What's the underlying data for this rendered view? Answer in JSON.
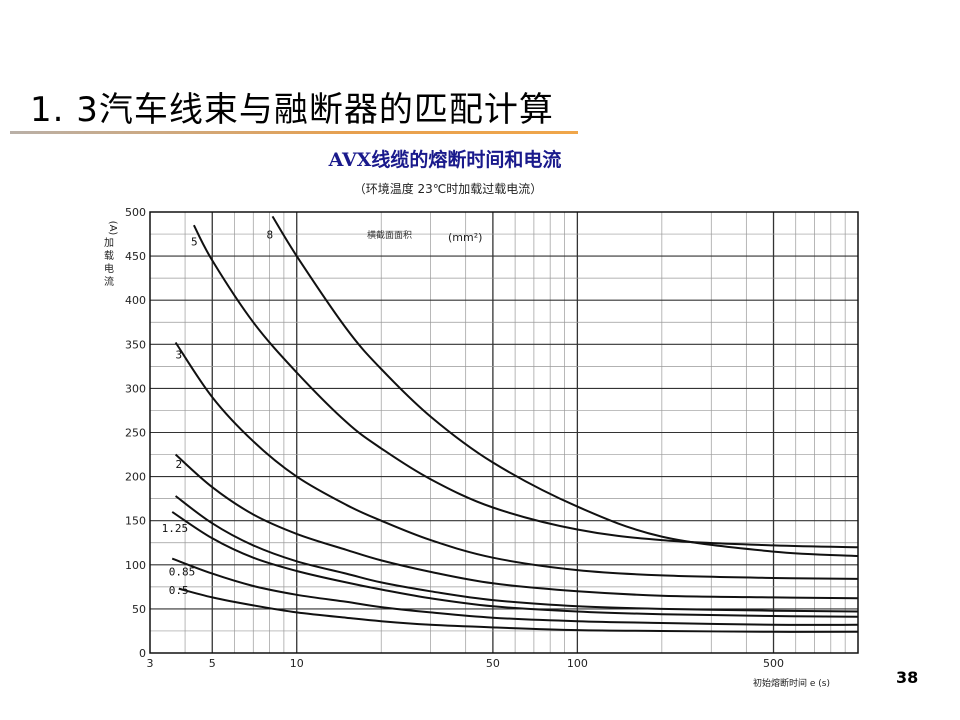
{
  "slide": {
    "title": "1. 3汽车线束与融断器的匹配计算",
    "page_number": "38"
  },
  "chart_data": {
    "type": "line",
    "title": "AVX线缆的熔断时间和电流",
    "subtitle": "（环境温度 23℃时加载过载电流）",
    "xlabel": "初始熔断时间  e (s)",
    "ylabel": "加载电流 (A)",
    "ylabel_unit": "(A)",
    "ylabel_text": "加载电流",
    "legend_title": "横截面面积",
    "legend_unit": "(mm²)",
    "x_scale": "log",
    "xlim": [
      3,
      1000
    ],
    "ylim": [
      0,
      500
    ],
    "x_ticks": [
      {
        "value": 3,
        "label": "3"
      },
      {
        "value": 5,
        "label": "5"
      },
      {
        "value": 10,
        "label": "10"
      },
      {
        "value": 50,
        "label": "50"
      },
      {
        "value": 100,
        "label": "100"
      },
      {
        "value": 500,
        "label": "500"
      }
    ],
    "y_ticks": [
      {
        "value": 0,
        "label": "0"
      },
      {
        "value": 50,
        "label": "50"
      },
      {
        "value": 100,
        "label": "100"
      },
      {
        "value": 150,
        "label": "150"
      },
      {
        "value": 200,
        "label": "200"
      },
      {
        "value": 250,
        "label": "250"
      },
      {
        "value": 300,
        "label": "300"
      },
      {
        "value": 350,
        "label": "350"
      },
      {
        "value": 400,
        "label": "400"
      },
      {
        "value": 450,
        "label": "450"
      },
      {
        "value": 500,
        "label": "500"
      }
    ],
    "grid": true,
    "series": [
      {
        "name": "0.5",
        "label_pos": [
          3.5,
          67
        ],
        "x": [
          3.8,
          5,
          7,
          10,
          15,
          20,
          30,
          50,
          100,
          200,
          500,
          1000
        ],
        "y": [
          73,
          63,
          54,
          46,
          40,
          36,
          32,
          29,
          26,
          25,
          24,
          24
        ]
      },
      {
        "name": "0.85",
        "label_pos": [
          3.5,
          88
        ],
        "x": [
          3.6,
          5,
          7,
          10,
          15,
          20,
          30,
          50,
          100,
          200,
          500,
          1000
        ],
        "y": [
          107,
          90,
          76,
          66,
          58,
          52,
          46,
          40,
          36,
          34,
          32,
          32
        ]
      },
      {
        "name": "1.25",
        "label_pos": [
          3.3,
          137
        ],
        "x": [
          3.6,
          5,
          7,
          10,
          15,
          20,
          30,
          50,
          100,
          200,
          500,
          1000
        ],
        "y": [
          160,
          130,
          108,
          93,
          80,
          72,
          62,
          53,
          47,
          44,
          42,
          41
        ]
      },
      {
        "name": "",
        "label_pos": [
          3.5,
          165
        ],
        "x": [
          3.7,
          5,
          7,
          10,
          15,
          20,
          30,
          50,
          100,
          200,
          500,
          1000
        ],
        "y": [
          178,
          147,
          122,
          104,
          90,
          80,
          70,
          60,
          53,
          50,
          48,
          47
        ]
      },
      {
        "name": "2",
        "label_pos": [
          3.7,
          210
        ],
        "x": [
          3.7,
          5,
          7,
          10,
          15,
          20,
          30,
          50,
          100,
          200,
          500,
          1000
        ],
        "y": [
          225,
          188,
          157,
          135,
          117,
          105,
          92,
          79,
          70,
          65,
          63,
          62
        ]
      },
      {
        "name": "3",
        "label_pos": [
          3.7,
          334
        ],
        "x": [
          3.7,
          5,
          7,
          10,
          15,
          20,
          30,
          50,
          100,
          200,
          500,
          1000
        ],
        "y": [
          352,
          290,
          240,
          200,
          168,
          150,
          128,
          108,
          94,
          88,
          85,
          84
        ]
      },
      {
        "name": "5",
        "label_pos": [
          4.2,
          462
        ],
        "x": [
          4.3,
          5,
          7,
          10,
          15,
          20,
          30,
          50,
          100,
          200,
          500,
          1000
        ],
        "y": [
          485,
          445,
          375,
          318,
          262,
          232,
          197,
          165,
          140,
          128,
          122,
          120
        ]
      },
      {
        "name": "8",
        "label_pos": [
          7.8,
          470
        ],
        "x": [
          8.2,
          10,
          15,
          20,
          30,
          50,
          100,
          200,
          500,
          1000
        ],
        "y": [
          495,
          450,
          368,
          322,
          268,
          216,
          166,
          132,
          115,
          110
        ]
      }
    ]
  }
}
